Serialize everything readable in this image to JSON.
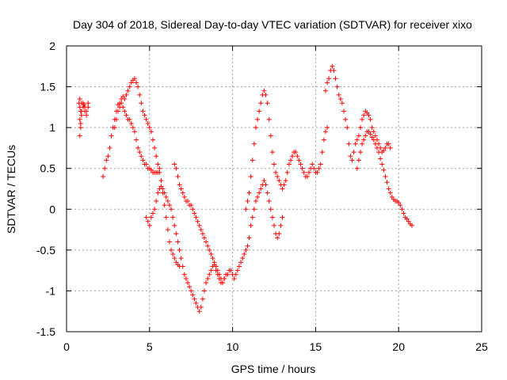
{
  "chart_data": {
    "type": "scatter",
    "title": "Day 304 of 2018, Sidereal Day-to-day VTEC variation (SDTVAR) for receiver xixo",
    "xlabel": "GPS time / hours",
    "ylabel": "SDTVAR / TECUs",
    "xlim": [
      0,
      25
    ],
    "ylim": [
      -1.5,
      2
    ],
    "xticks": [
      "0",
      "5",
      "10",
      "15",
      "20",
      "25"
    ],
    "yticks": [
      "-1.5",
      "-1",
      "-0.5",
      "0",
      "0.5",
      "1",
      "1.5",
      "2"
    ],
    "grid": true,
    "marker": "+",
    "color": "#ff0000",
    "series": [
      {
        "x": [
          0.75,
          0.8,
          0.85,
          0.9,
          1.0,
          1.1,
          1.2,
          1.3,
          0.8,
          0.85,
          0.9,
          1.0,
          1.1,
          1.2,
          1.3,
          0.8,
          0.8,
          0.85,
          0.9,
          1.05,
          2.2,
          2.3,
          2.4,
          2.5,
          2.6,
          2.7,
          2.8,
          2.9,
          3.0,
          3.1,
          3.2,
          3.3,
          3.4,
          3.5,
          3.6,
          3.7,
          3.8,
          3.9,
          4.0,
          4.1,
          4.2,
          4.3,
          4.4,
          4.5,
          4.6,
          4.7,
          4.8,
          4.9,
          5.0,
          5.1,
          5.2,
          5.3,
          5.4,
          5.5,
          5.6,
          5.7,
          5.8,
          5.9,
          6.0,
          6.1,
          6.2,
          6.3,
          6.4,
          6.5,
          6.6,
          6.7,
          6.8,
          2.9,
          3.0,
          3.1,
          3.2,
          3.3,
          3.4,
          3.5,
          3.6,
          3.7,
          3.8,
          3.9,
          4.0,
          4.1,
          4.2,
          4.3,
          4.4,
          4.5,
          4.6,
          4.7,
          4.8,
          4.9,
          5.0,
          5.1,
          5.2,
          5.3,
          5.4,
          5.5,
          5.6,
          4.8,
          4.9,
          5.0,
          5.1,
          5.2,
          5.3,
          5.4,
          5.5,
          5.6,
          5.7,
          5.8,
          5.9,
          6.0,
          6.1,
          6.2,
          6.3,
          6.4,
          6.5,
          6.6,
          6.7,
          6.8,
          6.9,
          7.0,
          7.1,
          7.2,
          7.3,
          7.4,
          7.5,
          7.6,
          7.7,
          7.8,
          7.9,
          8.0,
          8.1,
          8.2,
          8.3,
          8.4,
          8.5,
          8.6,
          8.7,
          8.8,
          8.9,
          9.0,
          9.1,
          9.2,
          9.3,
          9.4,
          9.5,
          6.5,
          6.6,
          6.7,
          6.8,
          6.9,
          7.0,
          7.1,
          7.2,
          7.3,
          7.4,
          7.5,
          7.6,
          7.7,
          7.8,
          7.9,
          8.0,
          8.1,
          8.2,
          8.3,
          8.4,
          8.5,
          8.6,
          8.7,
          8.8,
          8.9,
          9.0,
          9.1,
          9.2,
          9.3,
          9.4,
          9.5,
          9.6,
          9.7,
          9.8,
          9.9,
          10.0,
          10.1,
          10.2,
          10.3,
          10.4,
          10.5,
          10.6,
          10.7,
          10.8,
          10.9,
          11.0,
          11.1,
          11.2,
          11.3,
          11.4,
          11.5,
          11.6,
          11.7,
          11.8,
          11.9,
          12.0,
          12.1,
          12.2,
          12.3,
          12.4,
          12.5,
          12.6,
          12.7,
          12.8,
          12.9,
          13.0,
          10.8,
          10.9,
          11.0,
          11.1,
          11.2,
          11.3,
          11.4,
          11.5,
          11.6,
          11.7,
          11.8,
          11.9,
          12.0,
          12.1,
          12.2,
          12.3,
          12.4,
          12.5,
          12.6,
          12.7,
          12.8,
          12.9,
          13.0,
          13.1,
          13.2,
          13.3,
          13.4,
          13.5,
          13.6,
          13.7,
          13.8,
          13.9,
          14.0,
          14.1,
          14.2,
          14.3,
          14.4,
          14.5,
          14.6,
          14.7,
          14.8,
          14.9,
          15.0,
          15.1,
          15.2,
          15.3,
          15.4,
          15.5,
          15.6,
          15.7,
          15.6,
          15.7,
          15.8,
          15.9,
          16.0,
          16.1,
          16.2,
          16.3,
          16.4,
          16.5,
          16.6,
          16.7,
          16.8,
          16.9,
          17.0,
          17.1,
          17.2,
          17.3,
          17.4,
          17.5,
          17.6,
          17.7,
          17.8,
          17.9,
          18.0,
          18.1,
          18.2,
          18.3,
          18.4,
          18.5,
          18.6,
          18.7,
          18.8,
          18.9,
          19.0,
          19.1,
          19.2,
          19.3,
          19.4,
          19.5,
          17.5,
          17.6,
          17.7,
          17.8,
          17.9,
          18.0,
          18.1,
          18.2,
          18.3,
          18.4,
          18.5,
          18.6,
          18.7,
          18.8,
          18.9,
          19.0,
          19.1,
          19.2,
          19.3,
          19.4,
          19.5,
          19.6,
          19.7,
          19.8,
          19.9,
          20.0,
          20.1,
          20.2,
          20.3,
          20.4,
          20.5,
          20.6,
          20.7,
          20.8
        ],
        "y": [
          1.3,
          1.25,
          1.2,
          1.15,
          1.3,
          1.25,
          1.2,
          1.3,
          1.1,
          1.0,
          1.2,
          1.25,
          1.2,
          1.15,
          1.25,
          1.35,
          0.9,
          1.05,
          1.3,
          1.28,
          0.4,
          0.5,
          0.6,
          0.65,
          0.75,
          0.9,
          1.0,
          1.1,
          1.2,
          1.28,
          1.3,
          1.35,
          1.38,
          1.35,
          1.4,
          1.45,
          1.5,
          1.55,
          1.58,
          1.6,
          1.55,
          1.5,
          1.4,
          1.3,
          1.2,
          1.15,
          1.1,
          1.05,
          1.0,
          0.95,
          0.85,
          0.75,
          0.65,
          0.55,
          0.45,
          0.35,
          0.2,
          0.05,
          -0.1,
          -0.25,
          -0.4,
          -0.5,
          -0.55,
          -0.6,
          -0.65,
          -0.68,
          -0.7,
          1.0,
          1.1,
          1.2,
          1.25,
          1.3,
          1.25,
          1.2,
          1.15,
          1.1,
          1.1,
          1.05,
          1.0,
          0.95,
          0.85,
          0.75,
          0.7,
          0.65,
          0.6,
          0.55,
          0.55,
          0.5,
          0.5,
          0.48,
          0.45,
          0.45,
          0.45,
          0.45,
          0.5,
          -0.1,
          -0.15,
          -0.2,
          -0.1,
          -0.05,
          0.0,
          0.1,
          0.2,
          0.25,
          0.28,
          0.25,
          0.2,
          0.15,
          0.1,
          0.05,
          0.0,
          -0.1,
          -0.2,
          -0.3,
          -0.4,
          -0.5,
          -0.6,
          -0.7,
          -0.8,
          -0.85,
          -0.9,
          -0.95,
          -1.0,
          -1.05,
          -1.1,
          -1.15,
          -1.2,
          -1.25,
          -1.2,
          -1.1,
          -1.0,
          -0.9,
          -0.85,
          -0.8,
          -0.75,
          -0.7,
          -0.68,
          -0.75,
          -0.8,
          -0.85,
          -0.9,
          -0.9,
          -0.85,
          0.55,
          0.5,
          0.4,
          0.3,
          0.25,
          0.2,
          0.15,
          0.1,
          0.1,
          0.05,
          0.05,
          0.0,
          -0.05,
          -0.1,
          -0.15,
          -0.2,
          -0.25,
          -0.3,
          -0.35,
          -0.4,
          -0.45,
          -0.5,
          -0.55,
          -0.6,
          -0.65,
          -0.7,
          -0.75,
          -0.8,
          -0.85,
          -0.9,
          -0.85,
          -0.8,
          -0.8,
          -0.75,
          -0.75,
          -0.8,
          -0.85,
          -0.8,
          -0.75,
          -0.7,
          -0.65,
          -0.6,
          -0.55,
          -0.5,
          -0.45,
          -0.35,
          -0.2,
          -0.1,
          0.0,
          0.1,
          0.15,
          0.2,
          0.25,
          0.3,
          0.35,
          0.3,
          0.2,
          0.1,
          0.0,
          -0.1,
          -0.2,
          -0.3,
          -0.35,
          -0.3,
          -0.2,
          -0.1,
          0.0,
          0.1,
          0.2,
          0.4,
          0.6,
          0.8,
          1.0,
          1.1,
          1.2,
          1.3,
          1.4,
          1.45,
          1.4,
          1.3,
          1.1,
          0.9,
          0.7,
          0.55,
          0.45,
          0.4,
          0.35,
          0.3,
          0.25,
          0.3,
          0.35,
          0.45,
          0.55,
          0.6,
          0.65,
          0.7,
          0.7,
          0.65,
          0.6,
          0.55,
          0.5,
          0.45,
          0.4,
          0.4,
          0.45,
          0.5,
          0.55,
          0.5,
          0.45,
          0.45,
          0.5,
          0.55,
          0.7,
          0.85,
          0.95,
          1.0,
          1.45,
          1.55,
          1.6,
          1.7,
          1.75,
          1.7,
          1.6,
          1.5,
          1.4,
          1.35,
          1.3,
          1.2,
          1.1,
          1.0,
          0.8,
          0.65,
          0.6,
          0.7,
          0.8,
          0.85,
          0.9,
          1.0,
          1.1,
          1.15,
          1.2,
          1.18,
          1.15,
          1.1,
          1.0,
          0.95,
          0.9,
          0.85,
          0.8,
          0.75,
          0.7,
          0.72,
          0.75,
          0.8,
          0.8,
          0.75,
          0.5,
          0.6,
          0.7,
          0.8,
          0.85,
          0.9,
          0.95,
          0.95,
          0.92,
          0.88,
          0.85,
          0.8,
          0.75,
          0.7,
          0.62,
          0.55,
          0.48,
          0.4,
          0.33,
          0.25,
          0.2,
          0.15,
          0.12,
          0.1,
          0.1,
          0.08,
          0.05,
          0.0,
          -0.05,
          -0.1,
          -0.12,
          -0.15,
          -0.18,
          -0.2
        ]
      }
    ]
  }
}
